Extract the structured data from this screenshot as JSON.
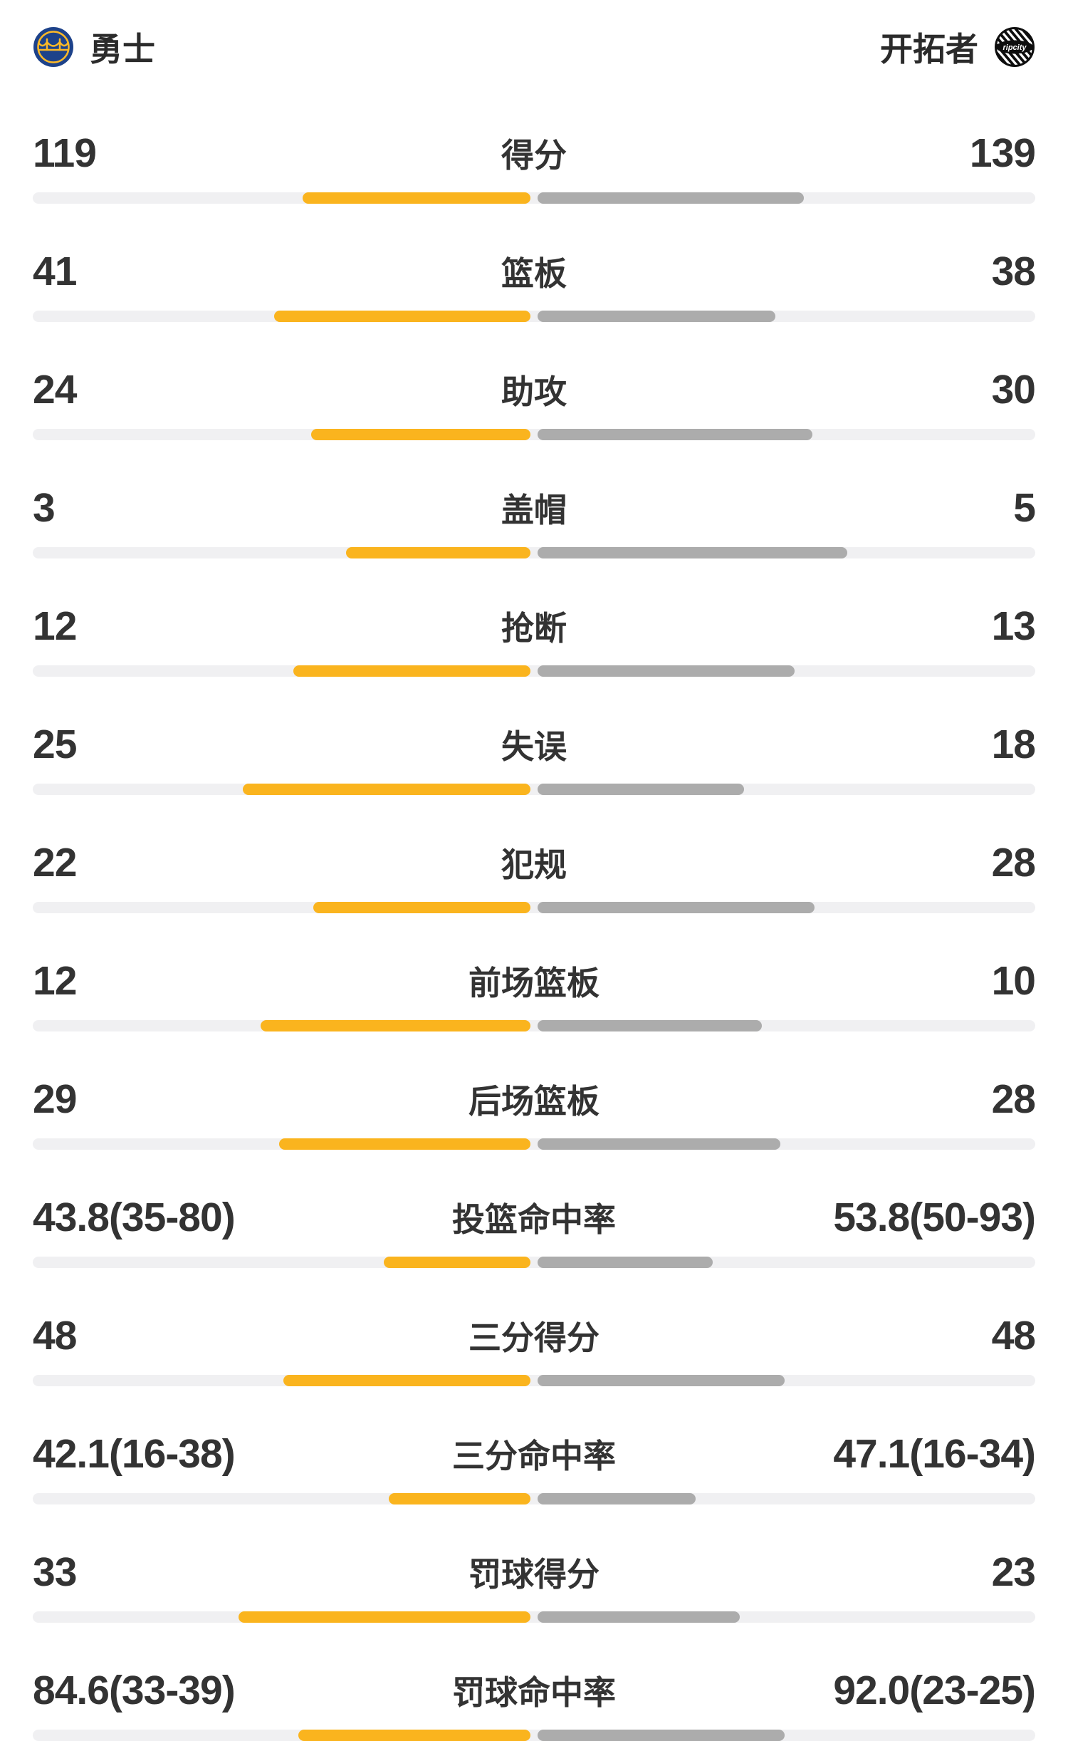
{
  "header": {
    "home": {
      "name": "勇士"
    },
    "away": {
      "name": "开拓者",
      "logo_text": "ripcity"
    }
  },
  "colors": {
    "home_bar": "#FAB41E",
    "away_bar": "#ACACAC",
    "track": "#F0F0F2",
    "text": "#333333",
    "home_logo_navy": "#1D428A",
    "home_logo_gold": "#FDB927",
    "away_logo_black": "#0E0E0E"
  },
  "chart_data": {
    "type": "bar",
    "orientation": "horizontal-paired",
    "legend_position": "top",
    "categories": [
      "得分",
      "篮板",
      "助攻",
      "盖帽",
      "抢断",
      "失误",
      "犯规",
      "前场篮板",
      "后场篮板",
      "投篮命中率",
      "三分得分",
      "三分命中率",
      "罚球得分",
      "罚球命中率"
    ],
    "series": [
      {
        "name": "勇士",
        "color": "#FAB41E",
        "values": [
          119,
          41,
          24,
          3,
          12,
          25,
          22,
          12,
          29,
          43.8,
          48,
          42.1,
          33,
          84.6
        ],
        "display": [
          "119",
          "41",
          "24",
          "3",
          "12",
          "25",
          "22",
          "12",
          "29",
          "43.8(35-80)",
          "48",
          "42.1(16-38)",
          "33",
          "84.6(33-39)"
        ]
      },
      {
        "name": "开拓者",
        "color": "#ACACAC",
        "values": [
          139,
          38,
          30,
          5,
          13,
          18,
          28,
          10,
          28,
          53.8,
          48,
          47.1,
          23,
          92.0
        ],
        "display": [
          "139",
          "38",
          "30",
          "5",
          "13",
          "18",
          "28",
          "10",
          "28",
          "53.8(50-93)",
          "48",
          "47.1(16-34)",
          "23",
          "92.0(23-25)"
        ]
      }
    ],
    "bar_fractions": {
      "home": [
        0.461,
        0.519,
        0.444,
        0.375,
        0.48,
        0.581,
        0.44,
        0.545,
        0.509,
        0.3,
        0.5,
        0.29,
        0.589,
        0.47
      ],
      "away": [
        0.539,
        0.481,
        0.556,
        0.625,
        0.52,
        0.419,
        0.56,
        0.455,
        0.491,
        0.356,
        0.5,
        0.323,
        0.411,
        0.5
      ]
    }
  }
}
